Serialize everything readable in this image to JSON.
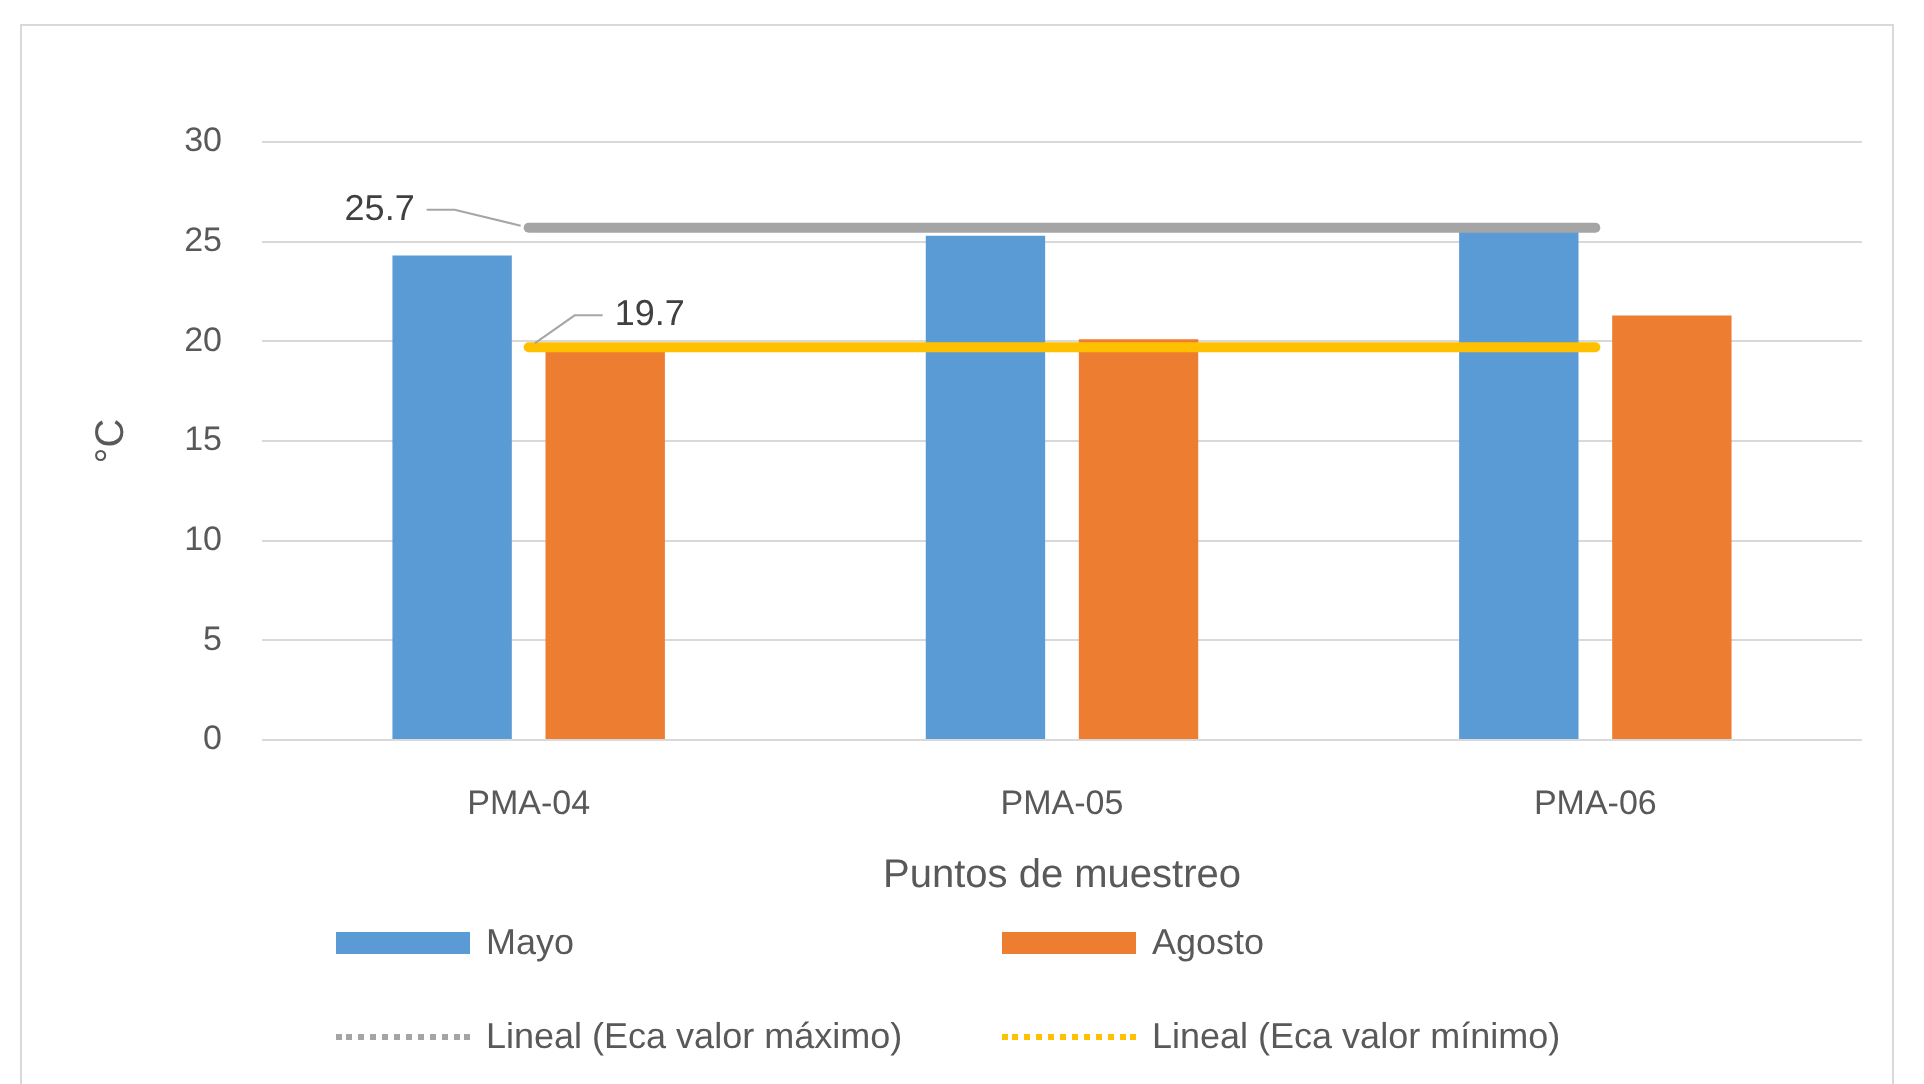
{
  "chart_data": {
    "type": "bar",
    "categories": [
      "PMA-04",
      "PMA-05",
      "PMA-06"
    ],
    "xlabel": "Puntos de muestreo",
    "ylabel": "°C",
    "ylim": [
      0,
      30
    ],
    "yticks": [
      0,
      5,
      10,
      15,
      20,
      25,
      30
    ],
    "grid": "y",
    "legend": "bottom",
    "marker": "none",
    "series": [
      {
        "name": "Mayo",
        "color": "#5b9bd5",
        "values": [
          24.3,
          25.3,
          25.5
        ]
      },
      {
        "name": "Agosto",
        "color": "#ed7d31",
        "values": [
          19.6,
          20.1,
          21.3
        ]
      },
      {
        "name": "Lineal (Eca valor máximo)",
        "type": "line",
        "color": "#a5a5a5",
        "values": [
          25.7,
          25.7,
          25.7
        ],
        "value_labels": [
          "25.7",
          null,
          null
        ]
      },
      {
        "name": "Lineal (Eca valor mínimo)",
        "type": "line",
        "color": "#ffc000",
        "values": [
          19.7,
          19.7,
          19.7
        ],
        "value_labels": [
          "19.7",
          null,
          null
        ]
      }
    ]
  }
}
